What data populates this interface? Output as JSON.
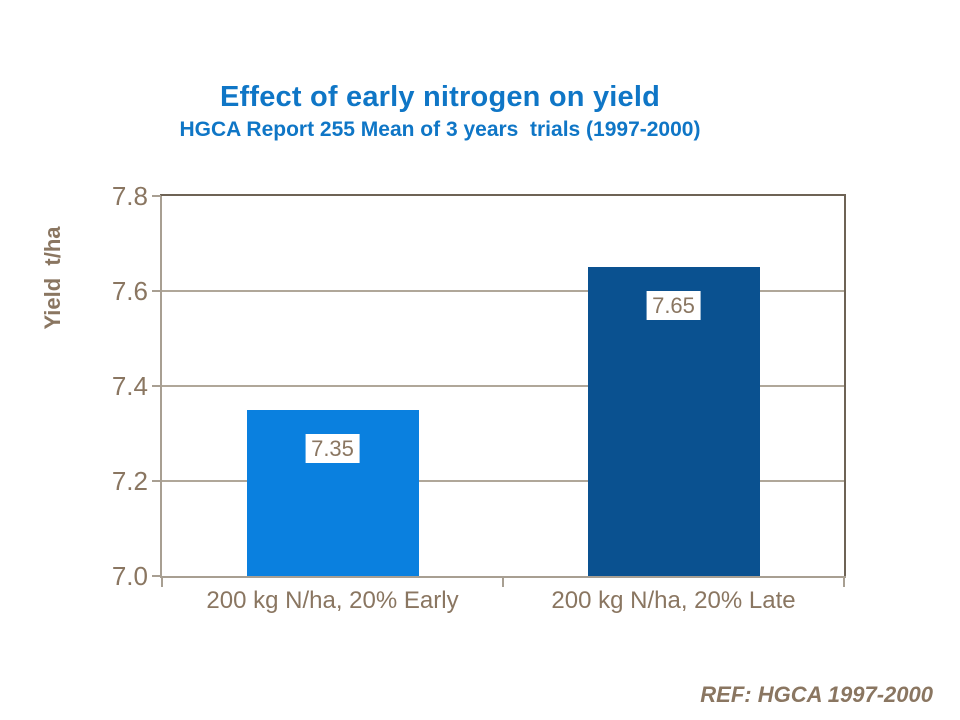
{
  "header": {
    "title": "Effect of early nitrogen on yield",
    "subtitle": "HGCA Report 255 Mean of 3 years  trials (1997-2000)"
  },
  "chart_data": {
    "type": "bar",
    "title": "Effect of early nitrogen on yield",
    "subtitle": "HGCA Report 255 Mean of 3 years trials (1997-2000)",
    "categories": [
      "200 kg N/ha, 20% Early",
      "200 kg N/ha, 20% Late"
    ],
    "values": [
      7.35,
      7.65
    ],
    "data_labels": [
      "7.35",
      "7.65"
    ],
    "series_colors": [
      "#0a80df",
      "#0a5190"
    ],
    "xlabel": "",
    "ylabel": "Yield  t/ha",
    "ylim": [
      7.0,
      7.8
    ],
    "yticks": [
      "7.0",
      "7.2",
      "7.4",
      "7.6",
      "7.8"
    ],
    "grid": true,
    "legend": false
  },
  "footer": {
    "ref": "REF: HGCA 1997-2000"
  },
  "colors": {
    "title_blue": "#0f76c6",
    "bar_early": "#0a80df",
    "bar_late": "#0a5190",
    "axis_text_brown": "#8a7661",
    "gridline": "#b0a799",
    "border_dark": "#6e6355",
    "axis_light": "#a89f92",
    "data_label_bg": "#ffffff"
  }
}
